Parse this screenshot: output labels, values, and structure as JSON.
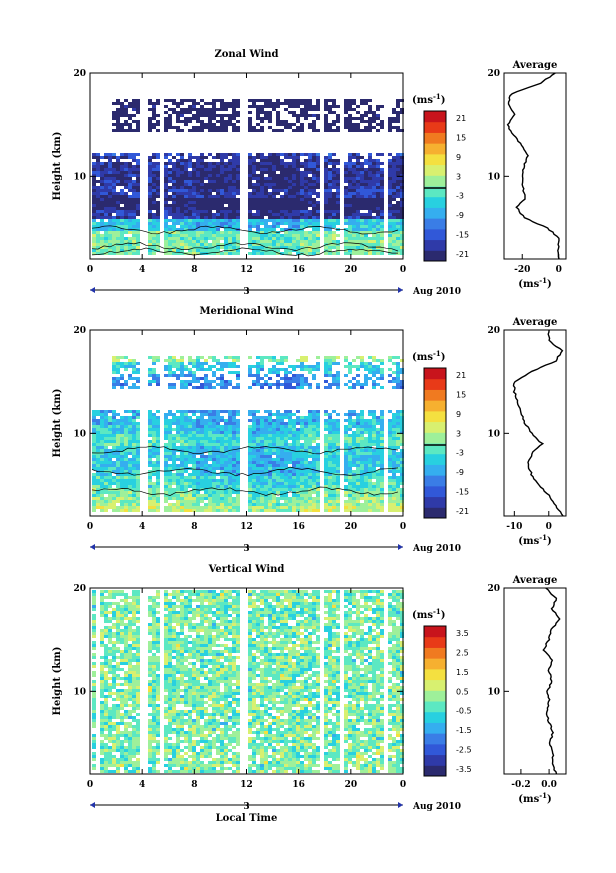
{
  "chart_data": [
    {
      "type": "heatmap",
      "title": "Zonal Wind",
      "ylabel": "Height (km)",
      "ylim": [
        2,
        20
      ],
      "yticks": [
        "20",
        "10"
      ],
      "xlim": [
        0,
        24
      ],
      "xticks": [
        "0",
        "4",
        "8",
        "12",
        "16",
        "20",
        "0"
      ],
      "date_ticks": [
        "3"
      ],
      "date_label": "Aug 2010",
      "colorbar": {
        "unit": "(ms",
        "unit_exp": "-1",
        "unit_close": ")",
        "min": -24,
        "max": 24,
        "ticks": [
          "21",
          "15",
          "9",
          "3",
          "-3",
          "-9",
          "-15",
          "-21"
        ]
      },
      "gaps_hours": [
        4.0,
        5.3,
        11.6,
        17.7,
        19.2,
        22.6
      ],
      "coverage": [
        [
          2.5,
          12.5
        ],
        [
          14.5,
          17.6
        ]
      ],
      "profile_values_ms": [
        4,
        0,
        0,
        0,
        -6,
        -19,
        -23,
        -18,
        -20,
        -20,
        -19,
        -17,
        -20,
        -25,
        -28,
        -24,
        -28,
        -26,
        -10,
        -2
      ],
      "average": {
        "title": "Average",
        "xlabel": "(ms",
        "xlabel_exp": "-1",
        "xlabel_close": ")",
        "xlim": [
          -30,
          4
        ],
        "xticks": [
          "-20",
          "0"
        ],
        "yticks": [
          "20",
          "10"
        ]
      }
    },
    {
      "type": "heatmap",
      "title": "Meridional Wind",
      "ylabel": "Height (km)",
      "ylim": [
        2,
        20
      ],
      "yticks": [
        "20",
        "10"
      ],
      "xlim": [
        0,
        24
      ],
      "xticks": [
        "0",
        "4",
        "8",
        "12",
        "16",
        "20",
        "0"
      ],
      "date_ticks": [
        "3"
      ],
      "date_label": "Aug 2010",
      "colorbar": {
        "unit": "(ms",
        "unit_exp": "-1",
        "unit_close": ")",
        "min": -24,
        "max": 24,
        "ticks": [
          "21",
          "15",
          "9",
          "3",
          "-3",
          "-9",
          "-15",
          "-21"
        ]
      },
      "gaps_hours": [
        4.0,
        5.3,
        11.6,
        17.7,
        19.2,
        22.6
      ],
      "coverage": [
        [
          2.5,
          12.5
        ],
        [
          14.5,
          17.6
        ]
      ],
      "profile_values_ms": [
        4,
        4,
        2,
        0,
        -3,
        -5,
        -6,
        -5,
        -2,
        -5,
        -7,
        -8,
        -9,
        -10,
        -10,
        -5,
        2,
        4,
        0,
        0
      ],
      "average": {
        "title": "Average",
        "xlabel": "(ms",
        "xlabel_exp": "-1",
        "xlabel_close": ")",
        "xlim": [
          -13,
          5
        ],
        "xticks": [
          "-10",
          "0"
        ],
        "yticks": [
          "20",
          "10"
        ]
      }
    },
    {
      "type": "heatmap",
      "title": "Vertical Wind",
      "ylabel": "Height (km)",
      "ylim": [
        2,
        20
      ],
      "yticks": [
        "20",
        "10"
      ],
      "xlabel": "Local Time",
      "xlim": [
        0,
        24
      ],
      "xticks": [
        "0",
        "4",
        "8",
        "12",
        "16",
        "20",
        "0"
      ],
      "date_ticks": [
        "3"
      ],
      "date_label": "Aug 2010",
      "colorbar": {
        "unit": "(ms",
        "unit_exp": "-1",
        "unit_close": ")",
        "min": -4,
        "max": 4,
        "ticks": [
          "3.5",
          "2.5",
          "1.5",
          "0.5",
          "-0.5",
          "-1.5",
          "-2.5",
          "-3.5"
        ]
      },
      "gaps_hours": [
        0.5,
        4.0,
        5.3,
        11.6,
        17.7,
        19.2,
        22.6
      ],
      "coverage": [
        [
          2.2,
          20
        ]
      ],
      "profile_values_ms": [
        0.12,
        0.05,
        0.02,
        0.03,
        0.0,
        0.03,
        0.0,
        -0.02,
        0.0,
        -0.01,
        0.02,
        0.0,
        0.02,
        -0.04,
        0.0,
        0.02,
        0.08,
        0.02,
        0.05,
        -0.02
      ],
      "average": {
        "title": "Average",
        "xlabel": "(ms",
        "xlabel_exp": "-1",
        "xlabel_close": ")",
        "xlim": [
          -0.32,
          0.12
        ],
        "xticks": [
          "-0.2",
          "0.0"
        ],
        "yticks": [
          "20",
          "10"
        ]
      }
    }
  ],
  "colors": {
    "palette": [
      "#2b2a6e",
      "#2f3aa8",
      "#3158d8",
      "#3a7de6",
      "#35aeef",
      "#28d0e0",
      "#5ce8c2",
      "#9ef09a",
      "#d8f070",
      "#f4e040",
      "#f6b030",
      "#f07a20",
      "#e83a18",
      "#c8141c"
    ]
  }
}
